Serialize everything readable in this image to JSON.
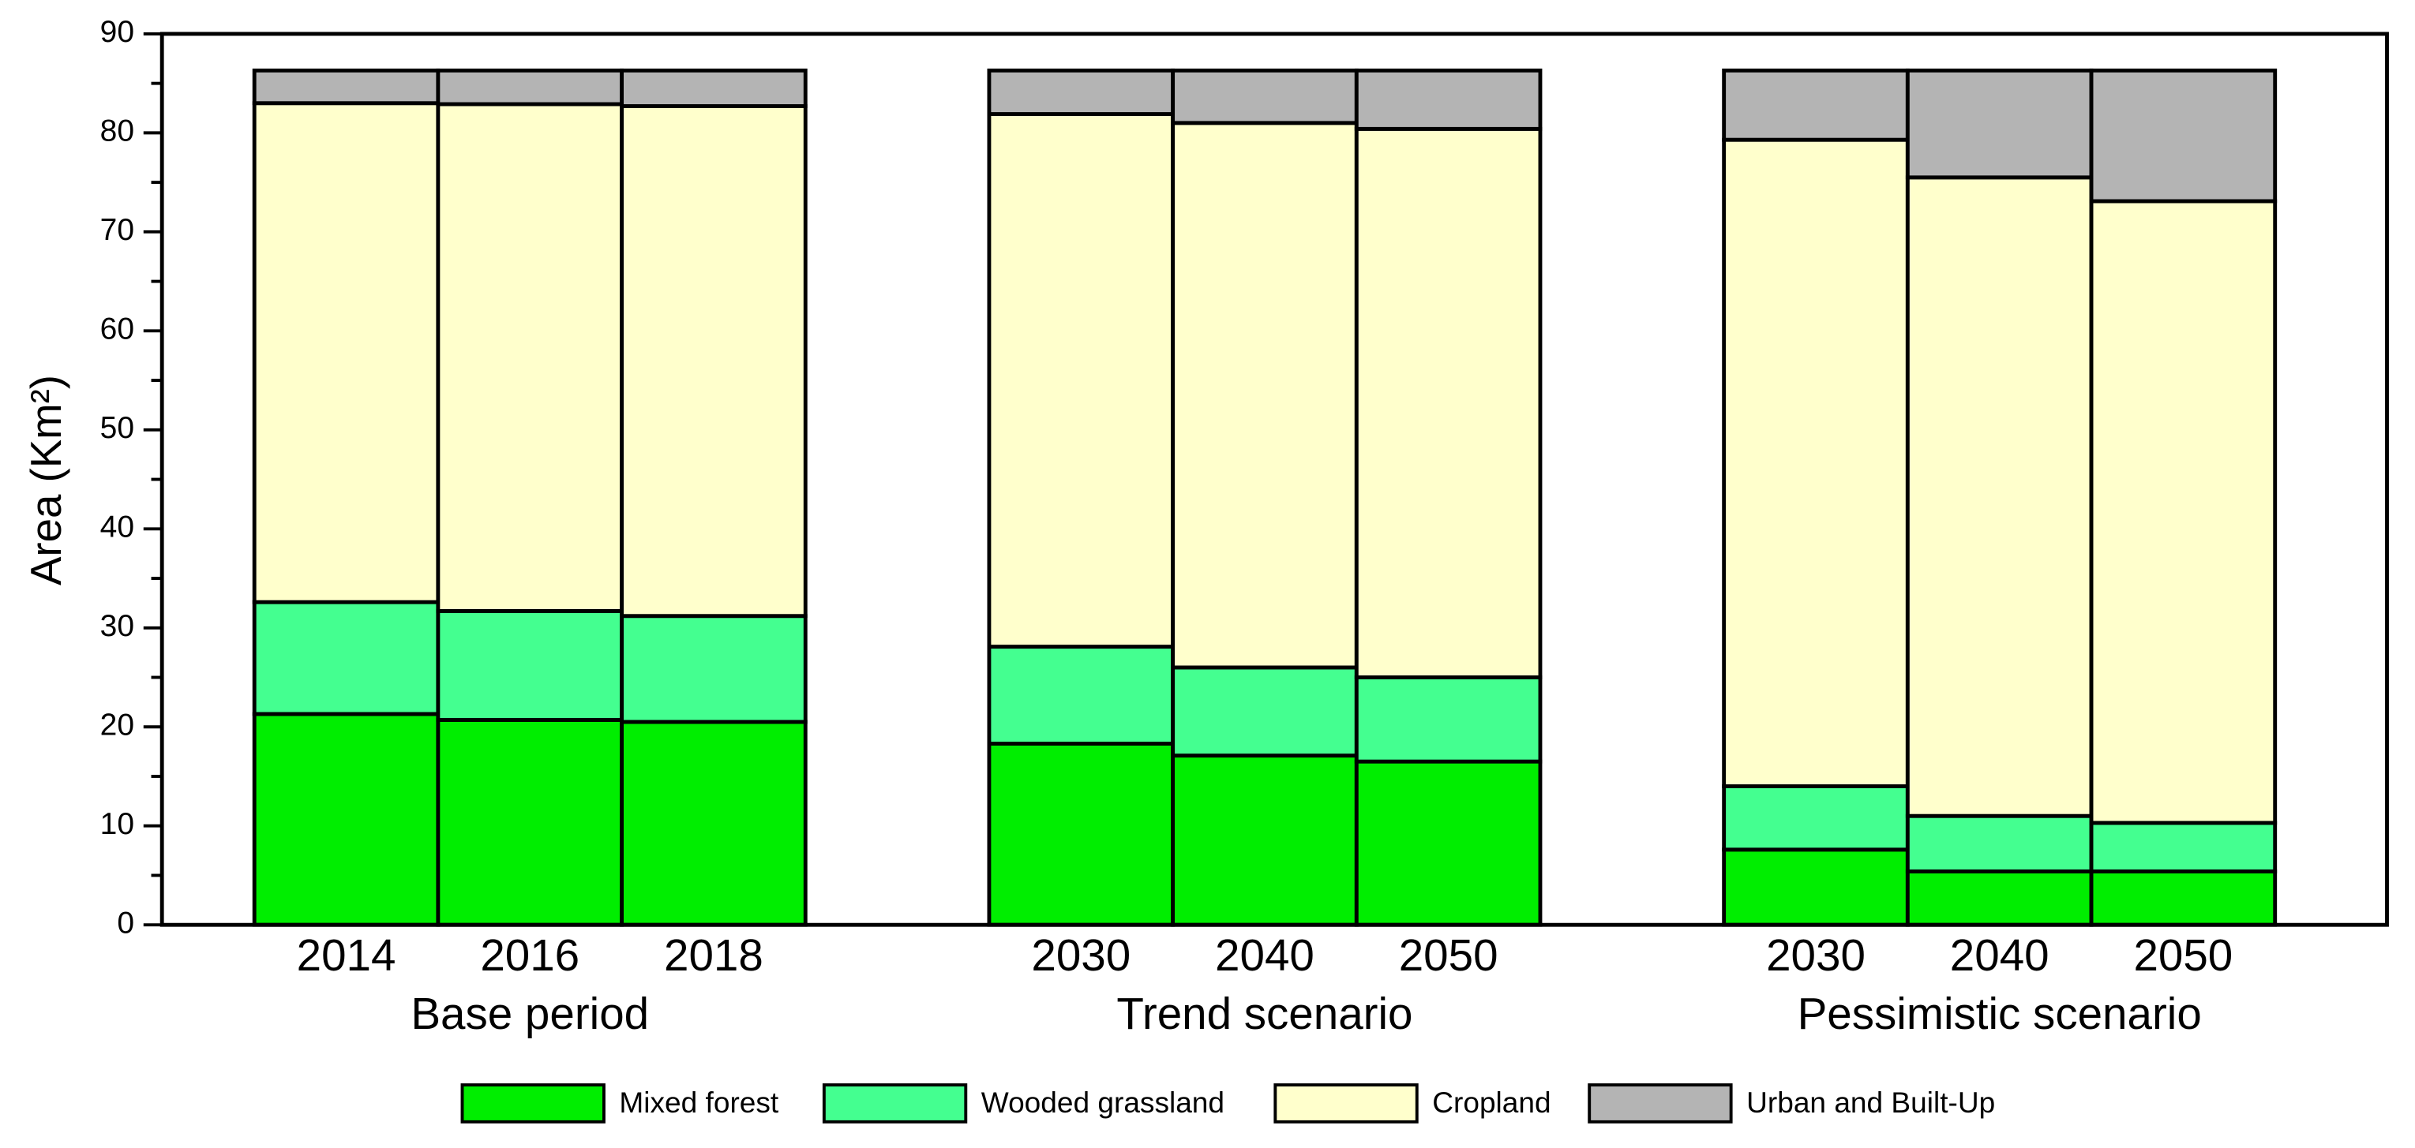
{
  "chart_data": {
    "type": "stacked_bar",
    "y_label": "Area (Km²)",
    "groups": [
      "Base period",
      "Trend scenario",
      "Pessimistic scenario"
    ],
    "categories": [
      "2014",
      "2016",
      "2018",
      "2030",
      "2040",
      "2050",
      "2030",
      "2040",
      "2050"
    ],
    "series": [
      {
        "name": "Mixed forest",
        "color": "#00ee00",
        "values": [
          21.3,
          20.7,
          20.5,
          18.3,
          17.1,
          16.5,
          7.6,
          5.4,
          5.4
        ]
      },
      {
        "name": "Wooded grassland",
        "color": "#44ff90",
        "values": [
          11.3,
          11.0,
          10.7,
          9.8,
          8.9,
          8.5,
          6.4,
          5.6,
          4.9
        ]
      },
      {
        "name": "Cropland",
        "color": "#ffffcc",
        "values": [
          50.4,
          51.2,
          51.5,
          53.8,
          55.0,
          55.4,
          65.3,
          64.5,
          62.8
        ]
      },
      {
        "name": "Urban and Built-Up",
        "color": "#b4b4b4",
        "values": [
          3.3,
          3.4,
          3.6,
          4.4,
          5.3,
          5.9,
          7.0,
          10.8,
          13.2
        ]
      }
    ],
    "ylim": [
      0,
      90
    ],
    "yticks": [
      0,
      10,
      20,
      30,
      40,
      50,
      60,
      70,
      80,
      90
    ],
    "yticks_minor": [
      5,
      15,
      25,
      35,
      45,
      55,
      65,
      75,
      85
    ]
  }
}
